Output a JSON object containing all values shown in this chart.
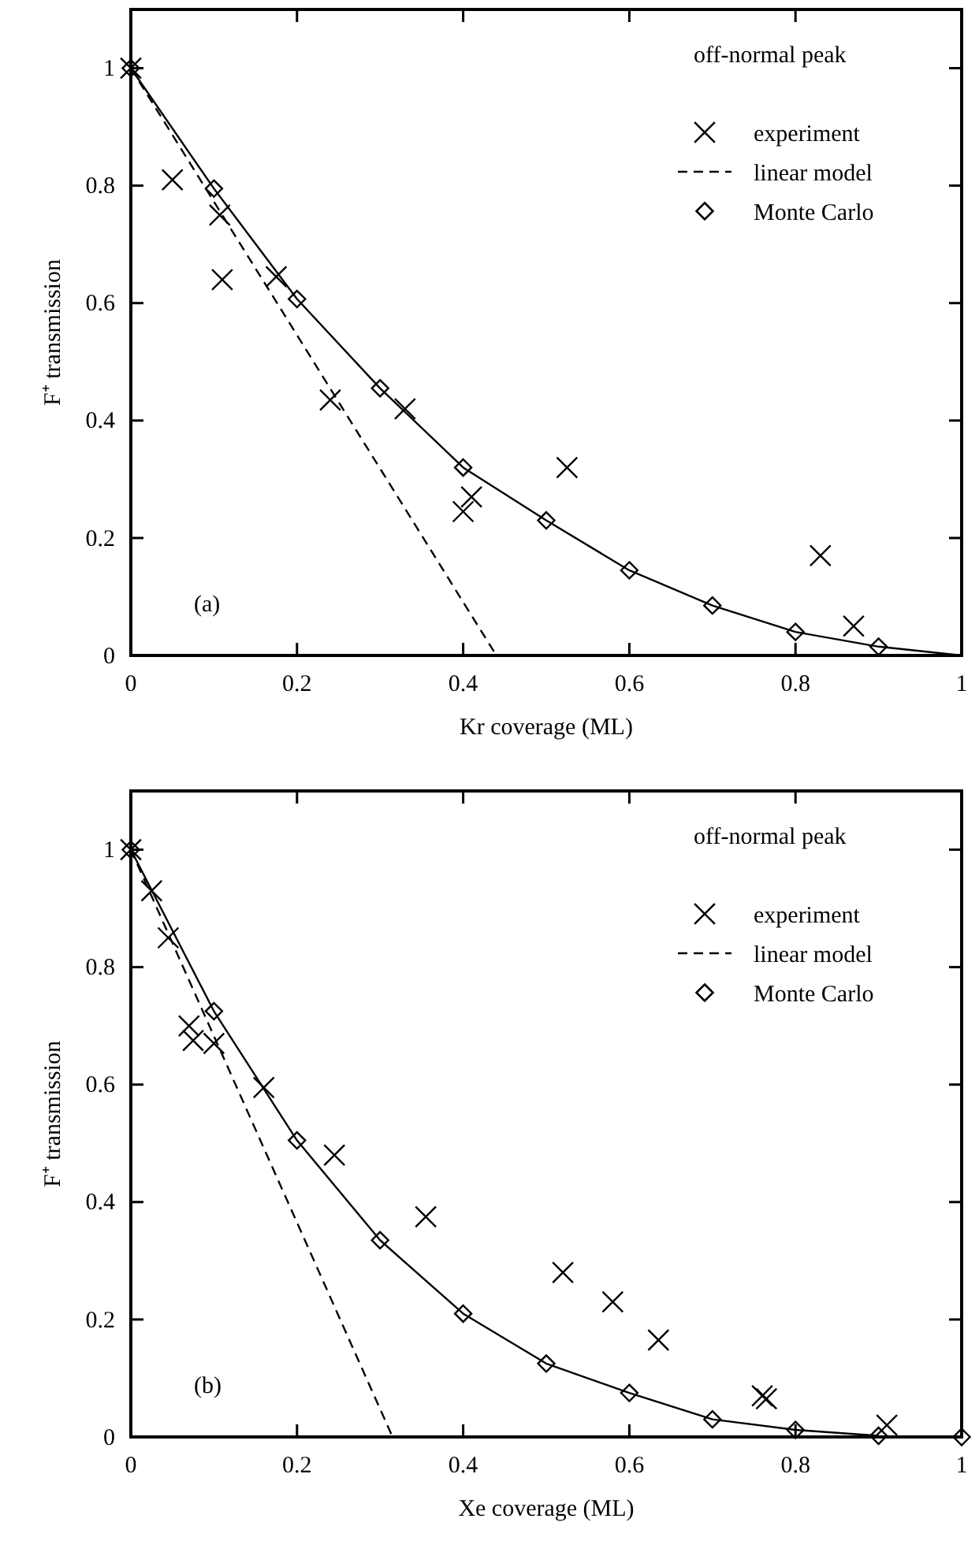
{
  "chart_data": [
    {
      "type": "scatter",
      "xlabel": "Kr coverage (ML)",
      "ylabel": "F⁺ transmission",
      "legend_title": "off-normal peak",
      "legend": "top right",
      "grid": false,
      "annotations": [
        "(a)"
      ],
      "xlim": [
        0,
        1
      ],
      "xticks": [
        0,
        0.2,
        0.4,
        0.6,
        0.8,
        1
      ],
      "ylim": [
        0,
        1.1
      ],
      "yticks": [
        0,
        0.2,
        0.4,
        0.6,
        0.8,
        1
      ],
      "series": [
        {
          "name": "experiment",
          "type": "scatter",
          "marker": "cross",
          "color": "#000000",
          "x": [
            0.05,
            0.107,
            0.11,
            0.175,
            0.24,
            0.33,
            0.4,
            0.41,
            0.525,
            0.83,
            0.87,
            0
          ],
          "values": [
            0.81,
            0.75,
            0.64,
            0.645,
            0.435,
            0.42,
            0.245,
            0.27,
            0.32,
            0.17,
            0.05,
            1
          ]
        },
        {
          "name": "linear model",
          "type": "line",
          "line_style": "dashed",
          "marker": "none",
          "color": "#000000",
          "x": [
            0,
            0.44
          ],
          "values": [
            1,
            0
          ]
        },
        {
          "name": "Monte Carlo",
          "marker": "diamond",
          "color": "#000000",
          "x": [
            0.1,
            0.2,
            0.3,
            0.4,
            0.5,
            0.6,
            0.7,
            0.8,
            0.9,
            0
          ],
          "values": [
            0.795,
            0.607,
            0.455,
            0.32,
            0.23,
            0.145,
            0.085,
            0.04,
            0.015,
            1
          ]
        },
        {
          "type": "line",
          "line_style": "solid",
          "marker": "none",
          "color": "#000000",
          "x": [
            0,
            0.1,
            0.2,
            0.3,
            0.4,
            0.5,
            0.6,
            0.7,
            0.8,
            0.9,
            1
          ],
          "values": [
            1,
            0.795,
            0.607,
            0.455,
            0.32,
            0.23,
            0.145,
            0.085,
            0.04,
            0.015,
            0
          ]
        }
      ]
    },
    {
      "type": "scatter",
      "xlabel": "Xe coverage (ML)",
      "ylabel": "F⁺ transmission",
      "legend_title": "off-normal peak",
      "legend": "top right",
      "grid": false,
      "annotations": [
        "(b)"
      ],
      "xlim": [
        0,
        1
      ],
      "xticks": [
        0,
        0.2,
        0.4,
        0.6,
        0.8,
        1
      ],
      "ylim": [
        0,
        1.1
      ],
      "yticks": [
        0,
        0.2,
        0.4,
        0.6,
        0.8,
        1
      ],
      "series": [
        {
          "name": "experiment",
          "type": "scatter",
          "marker": "cross",
          "color": "#000000",
          "x": [
            0.025,
            0.045,
            0.07,
            0.075,
            0.1,
            0.16,
            0.245,
            0.355,
            0.52,
            0.58,
            0.635,
            0.76,
            0.765,
            0.91,
            0
          ],
          "values": [
            0.93,
            0.85,
            0.7,
            0.675,
            0.67,
            0.595,
            0.48,
            0.375,
            0.28,
            0.23,
            0.165,
            0.07,
            0.065,
            0.02,
            1
          ]
        },
        {
          "name": "linear model",
          "type": "line",
          "line_style": "dashed",
          "marker": "none",
          "color": "#000000",
          "x": [
            0,
            0.315
          ],
          "values": [
            1,
            0
          ]
        },
        {
          "name": "Monte Carlo",
          "marker": "diamond",
          "color": "#000000",
          "x": [
            0.1,
            0.2,
            0.3,
            0.4,
            0.5,
            0.6,
            0.7,
            0.8,
            0.9,
            1,
            0
          ],
          "values": [
            0.725,
            0.505,
            0.335,
            0.21,
            0.125,
            0.075,
            0.03,
            0.012,
            0.002,
            0,
            1
          ]
        },
        {
          "type": "line",
          "line_style": "solid",
          "marker": "none",
          "color": "#000000",
          "x": [
            0,
            0.1,
            0.2,
            0.3,
            0.4,
            0.5,
            0.6,
            0.7,
            0.8,
            0.9
          ],
          "values": [
            1,
            0.725,
            0.505,
            0.335,
            0.21,
            0.125,
            0.075,
            0.03,
            0.012,
            0.002
          ]
        }
      ]
    }
  ]
}
